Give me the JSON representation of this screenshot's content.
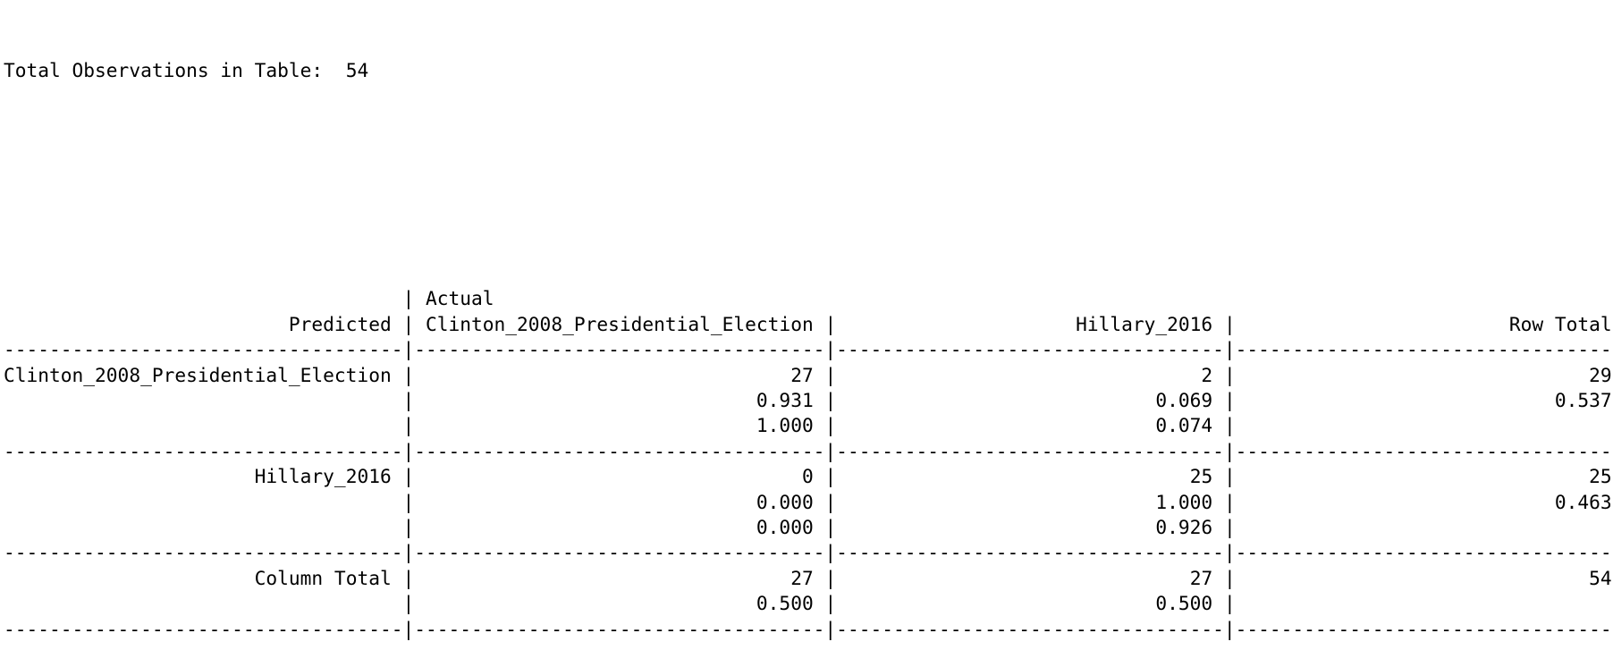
{
  "total_line": {
    "label": "Total Observations in Table:",
    "value": "54"
  },
  "header": {
    "actual_label": "Actual",
    "predicted_label": "Predicted",
    "columns": [
      "Clinton_2008_Presidential_Election",
      "Hillary_2016",
      "Row Total"
    ]
  },
  "rows": [
    {
      "label": "Clinton_2008_Presidential_Election",
      "lines": [
        [
          "27",
          "2",
          "29"
        ],
        [
          "0.931",
          "0.069",
          "0.537"
        ],
        [
          "1.000",
          "0.074",
          ""
        ]
      ]
    },
    {
      "label": "Hillary_2016",
      "lines": [
        [
          "0",
          "25",
          "25"
        ],
        [
          "0.000",
          "1.000",
          "0.463"
        ],
        [
          "0.000",
          "0.926",
          ""
        ]
      ]
    }
  ],
  "column_total": {
    "label": "Column Total",
    "lines": [
      [
        "27",
        "27",
        "54"
      ],
      [
        "0.500",
        "0.500",
        ""
      ]
    ]
  }
}
